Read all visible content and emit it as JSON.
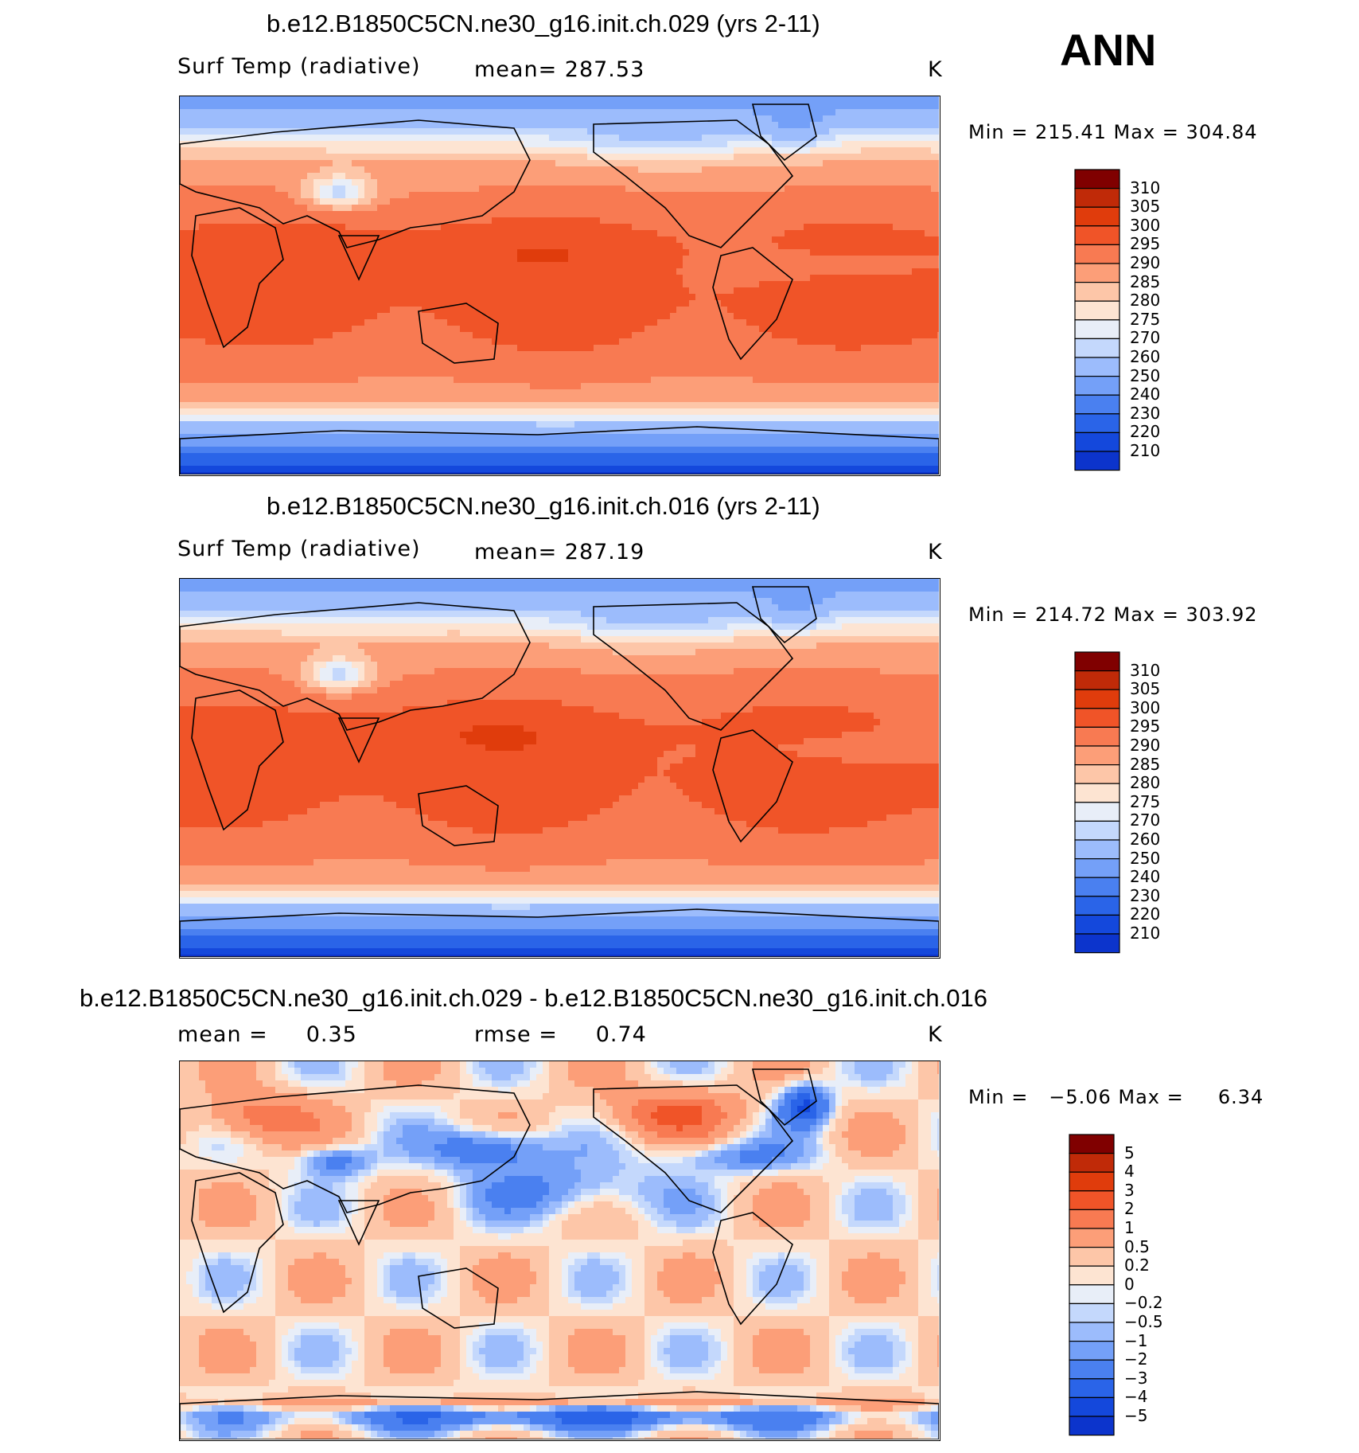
{
  "season": "ANN",
  "colors": {
    "abs_scale": [
      "#000080",
      "#0a1fb5",
      "#0c34cc",
      "#1448dc",
      "#2a64e8",
      "#4a80f0",
      "#74a0f8",
      "#9cbcfc",
      "#c4d8fc",
      "#e8eef8",
      "#fde4d2",
      "#fdc6a8",
      "#fc9e78",
      "#f87a52",
      "#f05428",
      "#e03c0c",
      "#c02a08",
      "#800000"
    ],
    "diff_scale": [
      "#000080",
      "#0a1fb5",
      "#0c34cc",
      "#1448dc",
      "#2a64e8",
      "#4a80f0",
      "#74a0f8",
      "#9cbcfc",
      "#c4d8fc",
      "#e8eef8",
      "#fde4d2",
      "#fdc6a8",
      "#fc9e78",
      "#f87a52",
      "#f05428",
      "#e03c0c",
      "#c02a08",
      "#800000"
    ]
  },
  "panels": [
    {
      "id": "ch029",
      "title": "b.e12.B1850C5CN.ne30_g16.init.ch.029 (yrs 2-11)",
      "left_label": "Surf Temp (radiative)",
      "center_label": "mean= 287.53",
      "units": "K",
      "minmax": "Min = 215.41 Max = 304.84",
      "colorbar_labels": [
        "310",
        "305",
        "300",
        "295",
        "290",
        "285",
        "280",
        "275",
        "270",
        "260",
        "250",
        "240",
        "230",
        "220",
        "210"
      ],
      "field": "abs1"
    },
    {
      "id": "ch016",
      "title": "b.e12.B1850C5CN.ne30_g16.init.ch.016 (yrs 2-11)",
      "left_label": "Surf Temp (radiative)",
      "center_label": "mean= 287.19",
      "units": "K",
      "minmax": "Min = 214.72 Max = 303.92",
      "colorbar_labels": [
        "310",
        "305",
        "300",
        "295",
        "290",
        "285",
        "280",
        "275",
        "270",
        "260",
        "250",
        "240",
        "230",
        "220",
        "210"
      ],
      "field": "abs2"
    },
    {
      "id": "diff",
      "title": "b.e12.B1850C5CN.ne30_g16.init.ch.029 - b.e12.B1850C5CN.ne30_g16.init.ch.016",
      "left_label": "mean =     0.35",
      "center_label": "rmse =     0.74",
      "units": "K",
      "minmax": "Min =   −5.06 Max =     6.34",
      "colorbar_labels": [
        "5",
        "4",
        "3",
        "2",
        "1",
        "0.5",
        "0.2",
        "0",
        "−0.2",
        "−0.5",
        "−1",
        "−2",
        "−3",
        "−4",
        "−5"
      ],
      "field": "diff"
    }
  ],
  "chart_data": [
    {
      "type": "heatmap",
      "title": "b.e12.B1850C5CN.ne30_g16.init.ch.029 (yrs 2-11)",
      "variable": "Surf Temp (radiative)",
      "units": "K",
      "mean": 287.53,
      "min": 215.41,
      "max": 304.84,
      "contour_levels": [
        210,
        220,
        230,
        240,
        250,
        260,
        270,
        275,
        280,
        285,
        290,
        295,
        300,
        305,
        310
      ],
      "x": "longitude (0 to 360, Pacific-centered)",
      "y": "latitude (-90 to 90)"
    },
    {
      "type": "heatmap",
      "title": "b.e12.B1850C5CN.ne30_g16.init.ch.016 (yrs 2-11)",
      "variable": "Surf Temp (radiative)",
      "units": "K",
      "mean": 287.19,
      "min": 214.72,
      "max": 303.92,
      "contour_levels": [
        210,
        220,
        230,
        240,
        250,
        260,
        270,
        275,
        280,
        285,
        290,
        295,
        300,
        305,
        310
      ]
    },
    {
      "type": "heatmap",
      "title": "b.e12.B1850C5CN.ne30_g16.init.ch.029 - b.e12.B1850C5CN.ne30_g16.init.ch.016",
      "units": "K",
      "mean": 0.35,
      "rmse": 0.74,
      "min": -5.06,
      "max": 6.34,
      "contour_levels": [
        -5,
        -4,
        -3,
        -2,
        -1,
        -0.5,
        -0.2,
        0,
        0.2,
        0.5,
        1,
        2,
        3,
        4,
        5
      ]
    }
  ]
}
